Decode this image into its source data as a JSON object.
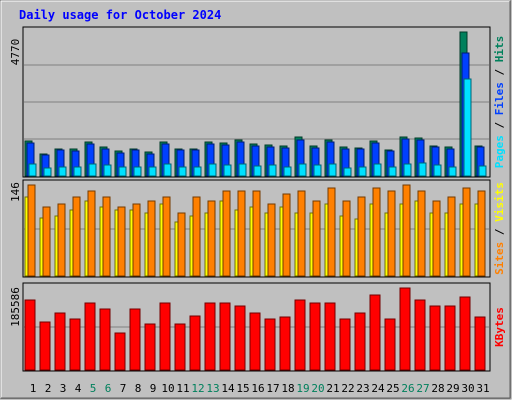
{
  "colors": {
    "background": "#c0c0c0",
    "title": "#0000ff",
    "hits": "#00805c",
    "files": "#0040ff",
    "pages": "#00e0ff",
    "visits": "#ffff00",
    "sites": "#ff8000",
    "kbytes": "#ff0000",
    "weekend": "#00805c",
    "weekday": "#000000"
  },
  "chart_data": [
    {
      "type": "bar",
      "title": "Daily usage for October 2024",
      "ylabel_max": "4770",
      "ylim": [
        0,
        4770
      ],
      "legend": [
        {
          "text": "Pages",
          "color": "#00e0ff"
        },
        {
          "text": " / ",
          "color": "#000000"
        },
        {
          "text": "Files",
          "color": "#0040ff"
        },
        {
          "text": " / ",
          "color": "#000000"
        },
        {
          "text": "Hits",
          "color": "#00805c"
        }
      ],
      "categories": [
        "1",
        "2",
        "3",
        "4",
        "5",
        "6",
        "7",
        "8",
        "9",
        "10",
        "11",
        "12",
        "13",
        "14",
        "15",
        "16",
        "17",
        "18",
        "19",
        "20",
        "21",
        "22",
        "23",
        "24",
        "25",
        "26",
        "27",
        "28",
        "29",
        "30",
        "31"
      ],
      "series": [
        {
          "name": "Hits",
          "values": [
            1150,
            720,
            900,
            880,
            1110,
            970,
            820,
            900,
            790,
            1120,
            890,
            880,
            1120,
            1080,
            1200,
            1050,
            1030,
            980,
            1290,
            1000,
            1190,
            960,
            930,
            1160,
            870,
            1300,
            1260,
            1000,
            950,
            4770,
            1000
          ]
        },
        {
          "name": "Files",
          "values": [
            1100,
            680,
            850,
            840,
            1060,
            910,
            760,
            860,
            740,
            1050,
            850,
            850,
            1060,
            1020,
            1140,
            990,
            970,
            930,
            1200,
            940,
            1120,
            900,
            880,
            1090,
            820,
            1220,
            1190,
            950,
            900,
            4060,
            960
          ]
        },
        {
          "name": "Pages",
          "values": [
            410,
            280,
            300,
            300,
            410,
            370,
            300,
            310,
            300,
            410,
            300,
            300,
            410,
            370,
            410,
            320,
            360,
            300,
            400,
            370,
            400,
            280,
            300,
            410,
            300,
            410,
            430,
            350,
            300,
            3220,
            340
          ]
        }
      ]
    },
    {
      "type": "bar",
      "ylabel_max": "146",
      "ylim": [
        0,
        146
      ],
      "legend": [
        {
          "text": "Sites",
          "color": "#ff8000"
        },
        {
          "text": " / ",
          "color": "#000000"
        },
        {
          "text": "Visits",
          "color": "#ffff00"
        }
      ],
      "categories": [
        "1",
        "2",
        "3",
        "4",
        "5",
        "6",
        "7",
        "8",
        "9",
        "10",
        "11",
        "12",
        "13",
        "14",
        "15",
        "16",
        "17",
        "18",
        "19",
        "20",
        "21",
        "22",
        "23",
        "24",
        "25",
        "26",
        "27",
        "28",
        "29",
        "30",
        "31"
      ],
      "series": [
        {
          "name": "Visits",
          "values": [
            126,
            93,
            96,
            106,
            121,
            111,
            106,
            106,
            101,
            116,
            86,
            96,
            101,
            121,
            106,
            111,
            101,
            111,
            101,
            101,
            116,
            96,
            91,
            116,
            101,
            116,
            121,
            101,
            101,
            116,
            116
          ]
        },
        {
          "name": "Sites",
          "values": [
            146,
            111,
            116,
            126,
            136,
            126,
            111,
            116,
            121,
            126,
            101,
            126,
            121,
            136,
            136,
            136,
            116,
            131,
            136,
            121,
            141,
            121,
            126,
            141,
            136,
            146,
            136,
            121,
            126,
            141,
            136
          ]
        }
      ]
    },
    {
      "type": "bar",
      "ylabel_max": "185586",
      "ylim": [
        0,
        185586
      ],
      "legend": [
        {
          "text": "KBytes",
          "color": "#ff0000"
        }
      ],
      "categories": [
        "1",
        "2",
        "3",
        "4",
        "5",
        "6",
        "7",
        "8",
        "9",
        "10",
        "11",
        "12",
        "13",
        "14",
        "15",
        "16",
        "17",
        "18",
        "19",
        "20",
        "21",
        "22",
        "23",
        "24",
        "25",
        "26",
        "27",
        "28",
        "29",
        "30",
        "31"
      ],
      "series": [
        {
          "name": "KBytes",
          "values": [
            158000,
            109000,
            129000,
            115000,
            151000,
            137000,
            84000,
            137000,
            104000,
            151000,
            104000,
            123000,
            151000,
            151000,
            144000,
            130000,
            116000,
            119000,
            158000,
            151000,
            151000,
            115000,
            129000,
            169000,
            116000,
            185586,
            158000,
            144000,
            144000,
            165000,
            119000
          ]
        }
      ]
    }
  ],
  "x_labels": [
    {
      "text": "1",
      "weekend": false
    },
    {
      "text": "2",
      "weekend": false
    },
    {
      "text": "3",
      "weekend": false
    },
    {
      "text": "4",
      "weekend": false
    },
    {
      "text": "5",
      "weekend": true
    },
    {
      "text": "6",
      "weekend": true
    },
    {
      "text": "7",
      "weekend": false
    },
    {
      "text": "8",
      "weekend": false
    },
    {
      "text": "9",
      "weekend": false
    },
    {
      "text": "10",
      "weekend": false
    },
    {
      "text": "11",
      "weekend": false
    },
    {
      "text": "12",
      "weekend": true
    },
    {
      "text": "13",
      "weekend": true
    },
    {
      "text": "14",
      "weekend": false
    },
    {
      "text": "15",
      "weekend": false
    },
    {
      "text": "16",
      "weekend": false
    },
    {
      "text": "17",
      "weekend": false
    },
    {
      "text": "18",
      "weekend": false
    },
    {
      "text": "19",
      "weekend": true
    },
    {
      "text": "20",
      "weekend": true
    },
    {
      "text": "21",
      "weekend": false
    },
    {
      "text": "22",
      "weekend": false
    },
    {
      "text": "23",
      "weekend": false
    },
    {
      "text": "24",
      "weekend": false
    },
    {
      "text": "25",
      "weekend": false
    },
    {
      "text": "26",
      "weekend": true
    },
    {
      "text": "27",
      "weekend": true
    },
    {
      "text": "28",
      "weekend": false
    },
    {
      "text": "29",
      "weekend": false
    },
    {
      "text": "30",
      "weekend": false
    },
    {
      "text": "31",
      "weekend": false
    }
  ]
}
